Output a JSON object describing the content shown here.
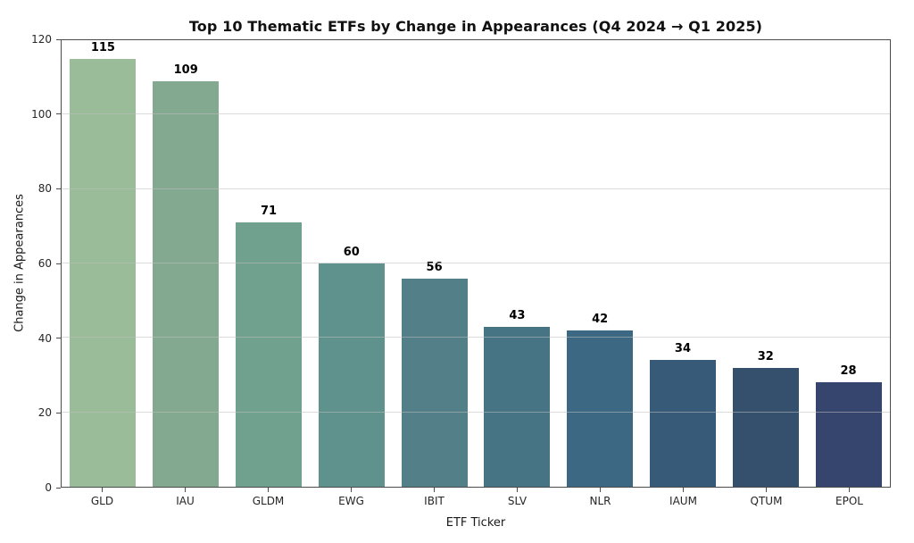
{
  "chart_data": {
    "type": "bar",
    "title": "Top 10 Thematic ETFs by Change in Appearances (Q4 2024 → Q1 2025)",
    "xlabel": "ETF Ticker",
    "ylabel": "Change in Appearances",
    "categories": [
      "GLD",
      "IAU",
      "GLDM",
      "EWG",
      "IBIT",
      "SLV",
      "NLR",
      "IAUM",
      "QTUM",
      "EPOL"
    ],
    "values": [
      115,
      109,
      71,
      60,
      56,
      43,
      42,
      34,
      32,
      28
    ],
    "value_labels": [
      "115",
      "109",
      "71",
      "60",
      "56",
      "43",
      "42",
      "34",
      "32",
      "28"
    ],
    "bar_colors": [
      "#9abc98",
      "#83aa90",
      "#70a08e",
      "#5f928c",
      "#527f88",
      "#477485",
      "#3d6883",
      "#365a77",
      "#34506d",
      "#36456e"
    ],
    "ylim": [
      0,
      120
    ],
    "yticks": [
      0,
      20,
      40,
      60,
      80,
      100,
      120
    ],
    "grid": "horizontal",
    "gridline_color": "#bebebe",
    "spine_color": "#4c4c4c",
    "background_color": "#ffffff",
    "legend": "none"
  }
}
